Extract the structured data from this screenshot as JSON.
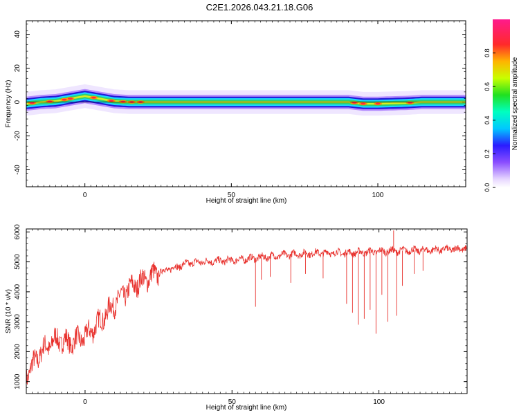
{
  "title": "C2E1.2026.043.21.18.G06",
  "colors": {
    "snr_line": "#e8302c",
    "axis": "#000000"
  },
  "chart_data": [
    {
      "type": "heatmap",
      "name": "spectrogram",
      "title": "C2E1.2026.043.21.18.G06",
      "xlabel": "Height of straight line (km)",
      "ylabel": "Frequency (Hz)",
      "xlim": [
        -20,
        130
      ],
      "ylim": [
        -50,
        48
      ],
      "xticks": [
        0,
        50,
        100
      ],
      "yticks": [
        -40,
        -20,
        0,
        20,
        40
      ],
      "xtick_labels": [
        "0",
        "50",
        "100"
      ],
      "ytick_labels": [
        "-40",
        "-20",
        "0",
        "20",
        "40"
      ],
      "ridge": {
        "x": [
          -20,
          -15,
          -10,
          -5,
          0,
          5,
          10,
          15,
          20,
          30,
          40,
          60,
          80,
          90,
          95,
          100,
          110,
          115,
          120,
          130
        ],
        "y": [
          -1,
          0,
          0.5,
          2,
          3.5,
          2,
          0.5,
          0,
          0,
          0,
          0,
          0,
          0,
          0,
          -1,
          -1,
          -0.5,
          0,
          0,
          0
        ]
      },
      "strong_spots_x": [
        -18,
        -12,
        -7,
        -5,
        3,
        9,
        13,
        16,
        19,
        92,
        95,
        100,
        111
      ],
      "colorbar": {
        "label": "Normalized spectral amplitude",
        "range": [
          0,
          1
        ],
        "ticks": [
          0.0,
          0.2,
          0.4,
          0.6,
          0.8
        ],
        "tick_labels": [
          "0.0",
          "0.2",
          "0.4",
          "0.6",
          "0.8"
        ]
      }
    },
    {
      "type": "line",
      "name": "snr",
      "xlabel": "Height of straight line (km)",
      "ylabel": "SNR (10 * v/v)",
      "xlim": [
        -20,
        130
      ],
      "ylim": [
        600,
        6100
      ],
      "xticks": [
        0,
        50,
        100
      ],
      "yticks": [
        1000,
        2000,
        3000,
        4000,
        5000,
        6000
      ],
      "xtick_labels": [
        "0",
        "50",
        "100"
      ],
      "ytick_labels": [
        "1000",
        "2000",
        "3000",
        "4000",
        "5000",
        "6000"
      ],
      "trend": {
        "x": [
          -20,
          -15,
          -10,
          -5,
          0,
          5,
          10,
          15,
          20,
          25,
          30,
          35,
          40,
          50,
          60,
          70,
          80,
          90,
          100,
          110,
          120,
          130
        ],
        "y": [
          1200,
          2000,
          2400,
          2300,
          2500,
          3000,
          3600,
          4100,
          4400,
          4650,
          4800,
          4950,
          5000,
          5050,
          5150,
          5250,
          5300,
          5300,
          5350,
          5380,
          5400,
          5450
        ]
      },
      "noise_amplitude": 380,
      "dips": [
        {
          "x": 58,
          "y": 3500
        },
        {
          "x": 60,
          "y": 4400
        },
        {
          "x": 63,
          "y": 4500
        },
        {
          "x": 70,
          "y": 4300
        },
        {
          "x": 75,
          "y": 4600
        },
        {
          "x": 81,
          "y": 4450
        },
        {
          "x": 89,
          "y": 3600
        },
        {
          "x": 91,
          "y": 3300
        },
        {
          "x": 93,
          "y": 2900
        },
        {
          "x": 95,
          "y": 3100
        },
        {
          "x": 97,
          "y": 3400
        },
        {
          "x": 99,
          "y": 2600
        },
        {
          "x": 101,
          "y": 3900
        },
        {
          "x": 103,
          "y": 3000
        },
        {
          "x": 106,
          "y": 3200
        },
        {
          "x": 108,
          "y": 4200
        },
        {
          "x": 112,
          "y": 4600
        },
        {
          "x": 115,
          "y": 4700
        }
      ],
      "spikes": [
        {
          "x": 105,
          "y": 6050
        }
      ]
    }
  ]
}
